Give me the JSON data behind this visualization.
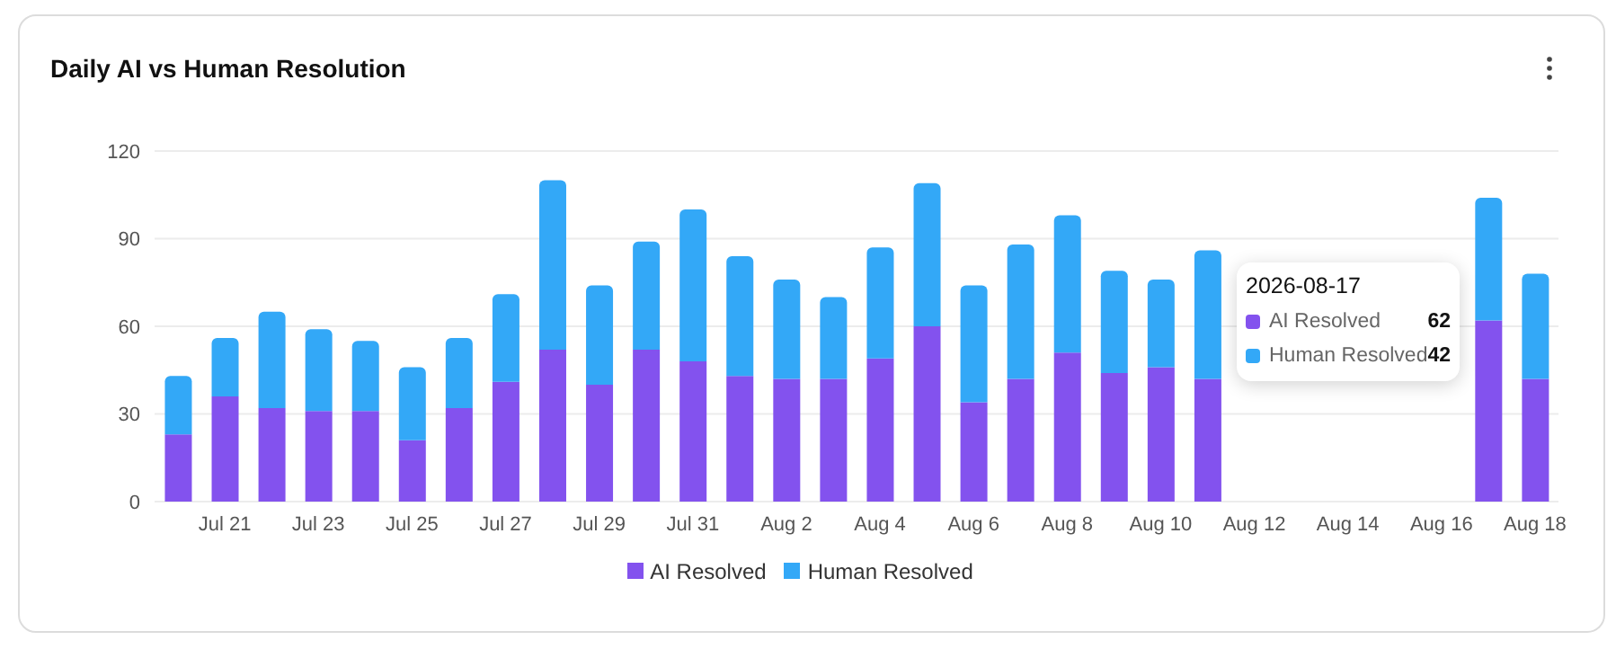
{
  "chart_data": {
    "type": "bar",
    "title": "Daily AI vs Human Resolution",
    "stacked": true,
    "categories": [
      null,
      "Jul 21",
      null,
      "Jul 23",
      null,
      "Jul 25",
      null,
      "Jul 27",
      null,
      "Jul 29",
      null,
      "Jul 31",
      null,
      "Aug 2",
      null,
      "Aug 4",
      null,
      "Aug 6",
      null,
      "Aug 8",
      null,
      "Aug 10",
      null,
      "Aug 12",
      null,
      "Aug 14",
      null,
      "Aug 16",
      null,
      "Aug 18"
    ],
    "series": [
      {
        "name": "AI Resolved",
        "color": "#8352ee",
        "values": [
          23,
          36,
          32,
          31,
          31,
          21,
          32,
          41,
          52,
          40,
          52,
          48,
          43,
          42,
          42,
          49,
          60,
          34,
          42,
          51,
          44,
          46,
          42,
          null,
          null,
          null,
          null,
          null,
          62,
          42
        ]
      },
      {
        "name": "Human Resolved",
        "color": "#33a8f7",
        "values": [
          20,
          20,
          33,
          28,
          24,
          25,
          24,
          30,
          58,
          34,
          37,
          52,
          41,
          34,
          28,
          38,
          49,
          40,
          46,
          47,
          35,
          30,
          44,
          null,
          null,
          null,
          null,
          null,
          42,
          36
        ]
      }
    ],
    "ylim": [
      0,
      120
    ],
    "yticks": [
      0,
      30,
      60,
      90,
      120
    ],
    "grid": "y",
    "legend": "bottom",
    "annotations": [
      "2026-08-17",
      "AI Resolved",
      "62",
      "Human Resolved",
      "42"
    ]
  }
}
